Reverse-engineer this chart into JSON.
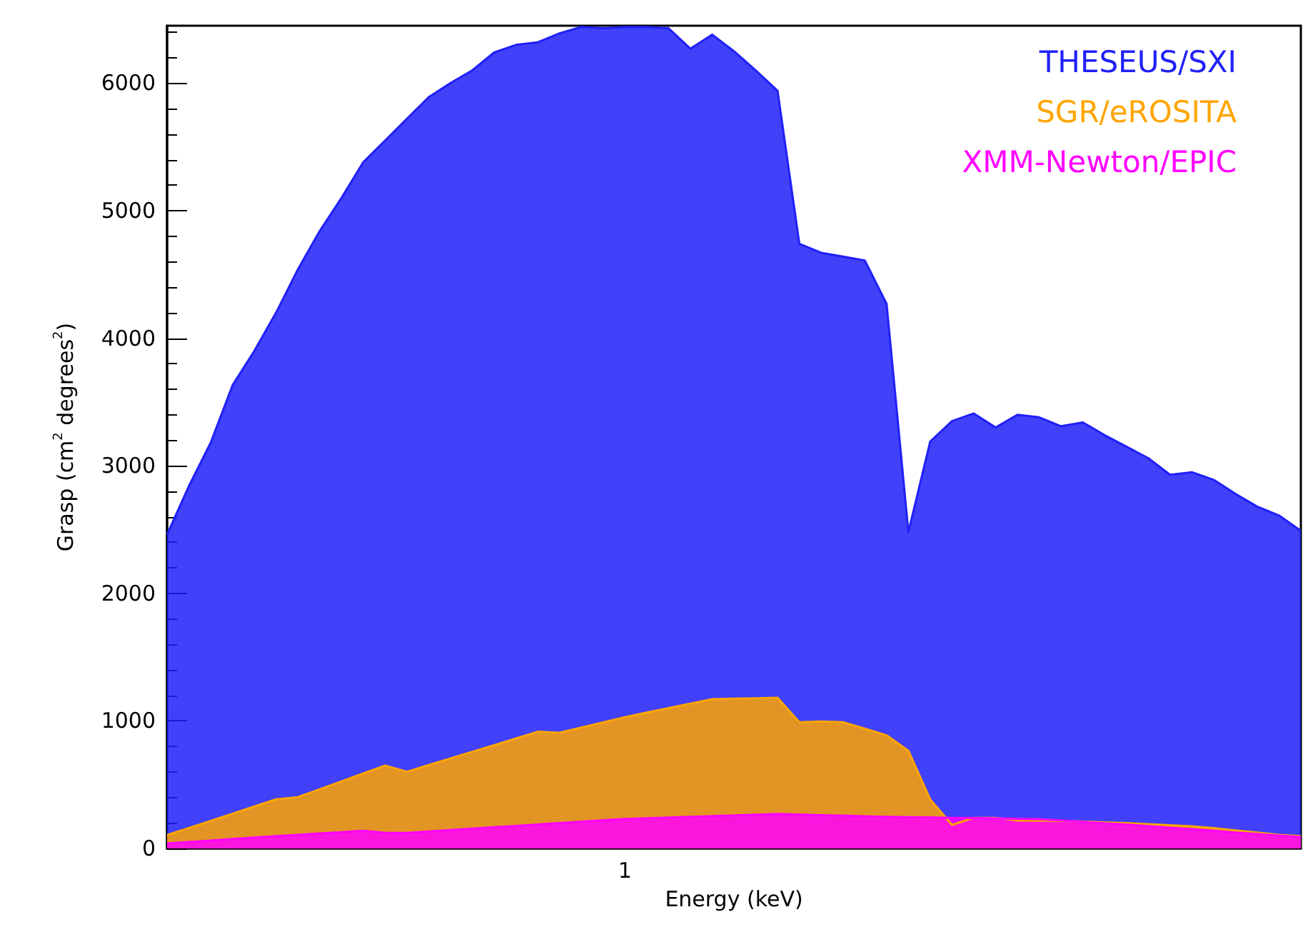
{
  "chart_data": {
    "type": "area",
    "xlabel": "Energy (keV)",
    "ylabel": "Grasp (cm$^{2}$ degrees$^{2}$)",
    "grid": false,
    "legend": "top right",
    "categories": [
      null,
      null,
      null,
      null,
      null,
      null,
      null,
      null,
      null,
      null,
      null,
      null,
      null,
      null,
      null,
      null,
      null,
      null,
      null,
      null,
      null,
      "1",
      null,
      null,
      null,
      null,
      null,
      null,
      null,
      null,
      null,
      null,
      null,
      null,
      null,
      null,
      null,
      null,
      null,
      null,
      null,
      null,
      null,
      null,
      null,
      null,
      null,
      null,
      null,
      null,
      null,
      null,
      null
    ],
    "ylim": [
      0,
      6450
    ],
    "yticks": [
      0,
      1000,
      2000,
      3000,
      4000,
      5000,
      6000
    ],
    "series": [
      {
        "name": "THESEUS/SXI",
        "color": "#2020f8",
        "values": [
          2460,
          2840,
          3180,
          3630,
          3900,
          4200,
          4540,
          4840,
          5100,
          5380,
          5550,
          5720,
          5890,
          6000,
          6100,
          6240,
          6300,
          6320,
          6390,
          6440,
          6430,
          6440,
          6440,
          6430,
          6270,
          6380,
          6250,
          6100,
          5940,
          4740,
          4670,
          4640,
          4610,
          4270,
          2480,
          3190,
          3350,
          3410,
          3300,
          3400,
          3380,
          3310,
          3340,
          3240,
          3150,
          3060,
          2930,
          2950,
          2890,
          2780,
          2680,
          2610,
          2490
        ]
      },
      {
        "name": "SGR/eROSITA",
        "color": "#ffa500",
        "values": [
          105,
          160,
          216,
          272,
          329,
          385,
          402,
          464,
          526,
          588,
          650,
          601,
          654,
          706,
          758,
          810,
          862,
          915,
          907,
          948,
          989,
          1029,
          1065,
          1100,
          1136,
          1170,
          1174,
          1177,
          1181,
          990,
          995,
          990,
          939,
          887,
          766,
          384,
          185,
          240,
          240,
          219,
          219,
          215,
          211,
          205,
          199,
          190,
          182,
          173,
          159,
          142,
          125,
          107,
          96
        ]
      },
      {
        "name": "XMM-Newton/EPIC",
        "color": "#ff00ff",
        "values": [
          39,
          51,
          62,
          74,
          85,
          97,
          107,
          117,
          128,
          138,
          123,
          122,
          133,
          144,
          155,
          166,
          177,
          188,
          199,
          210,
          221,
          231,
          237,
          242,
          248,
          253,
          259,
          264,
          270,
          266,
          261,
          257,
          252,
          248,
          245,
          243,
          240,
          238,
          235,
          233,
          230,
          220,
          209,
          198,
          187,
          175,
          163,
          151,
          139,
          125,
          113,
          101,
          90
        ]
      }
    ]
  }
}
